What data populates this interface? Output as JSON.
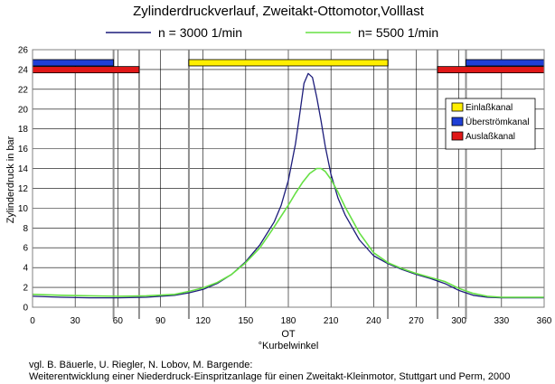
{
  "chart_data": {
    "type": "line",
    "title": "Zylinderdruckverlauf, Zweitakt-Ottomotor,Volllast",
    "xlabel_top": "OT",
    "xlabel": "°Kurbelwinkel",
    "ylabel": "Zylinderdruck in bar",
    "xlim": [
      0,
      360
    ],
    "ylim": [
      0,
      26
    ],
    "x_ticks": [
      0,
      30,
      60,
      90,
      120,
      150,
      180,
      210,
      240,
      270,
      300,
      330,
      360
    ],
    "y_ticks": [
      0,
      2,
      4,
      6,
      8,
      10,
      12,
      14,
      16,
      18,
      20,
      22,
      24,
      26
    ],
    "grid": true,
    "series": [
      {
        "name": "n = 3000 1/min",
        "color": "#1c1c7a",
        "x": [
          0,
          20,
          40,
          60,
          80,
          100,
          110,
          120,
          130,
          140,
          150,
          160,
          170,
          175,
          180,
          185,
          188,
          191,
          194,
          197,
          200,
          203,
          206,
          210,
          215,
          220,
          230,
          240,
          250,
          260,
          270,
          280,
          290,
          300,
          310,
          320,
          330,
          345,
          360
        ],
        "y": [
          1.1,
          1.0,
          0.95,
          0.95,
          1.0,
          1.2,
          1.45,
          1.8,
          2.4,
          3.3,
          4.6,
          6.3,
          8.6,
          10.3,
          12.8,
          16.5,
          19.5,
          22.6,
          23.6,
          23.2,
          21.2,
          18.8,
          16.2,
          13.4,
          11.0,
          9.3,
          6.8,
          5.2,
          4.4,
          3.8,
          3.3,
          2.9,
          2.4,
          1.7,
          1.2,
          1.0,
          0.95,
          0.95,
          0.95
        ]
      },
      {
        "name": "n= 5500 1/min",
        "color": "#66e044",
        "x": [
          0,
          20,
          40,
          60,
          80,
          100,
          110,
          120,
          130,
          140,
          150,
          160,
          170,
          180,
          185,
          190,
          195,
          200,
          203,
          206,
          210,
          215,
          220,
          230,
          240,
          250,
          260,
          270,
          280,
          290,
          300,
          310,
          320,
          330,
          345,
          360
        ],
        "y": [
          1.3,
          1.2,
          1.15,
          1.1,
          1.15,
          1.3,
          1.6,
          1.95,
          2.5,
          3.3,
          4.5,
          6.0,
          8.1,
          10.3,
          11.5,
          12.6,
          13.5,
          14.0,
          14.0,
          13.7,
          12.9,
          11.6,
          10.1,
          7.5,
          5.5,
          4.5,
          3.9,
          3.4,
          3.0,
          2.6,
          1.9,
          1.4,
          1.1,
          1.0,
          1.0,
          1.0
        ]
      }
    ],
    "timing_bars": [
      {
        "name": "Überströmkanal",
        "color": "#1f3fd6",
        "row": "upper",
        "ranges": [
          [
            0,
            57
          ],
          [
            305,
            360
          ]
        ]
      },
      {
        "name": "Einlaßkanal",
        "color": "#ffee00",
        "row": "upper",
        "ranges": [
          [
            110,
            250
          ]
        ]
      },
      {
        "name": "Auslaßkanal",
        "color": "#e01818",
        "row": "lower",
        "ranges": [
          [
            0,
            75
          ],
          [
            285,
            360
          ]
        ]
      }
    ],
    "markers_deg": [
      57,
      75,
      110,
      250,
      285,
      305
    ],
    "bar_legend": [
      {
        "label": "Einlaßkanal",
        "color": "#ffee00"
      },
      {
        "label": "Überströmkanal",
        "color": "#1f3fd6"
      },
      {
        "label": "Auslaßkanal",
        "color": "#e01818"
      }
    ]
  },
  "footnote": {
    "line1": "vgl. B. Bäuerle, U. Riegler, N. Lobov, M. Bargende:",
    "line2": "Weiterentwicklung einer Niederdruck-Einspritzanlage für einen Zweitakt-Kleinmotor, Stuttgart und Perm, 2000"
  }
}
